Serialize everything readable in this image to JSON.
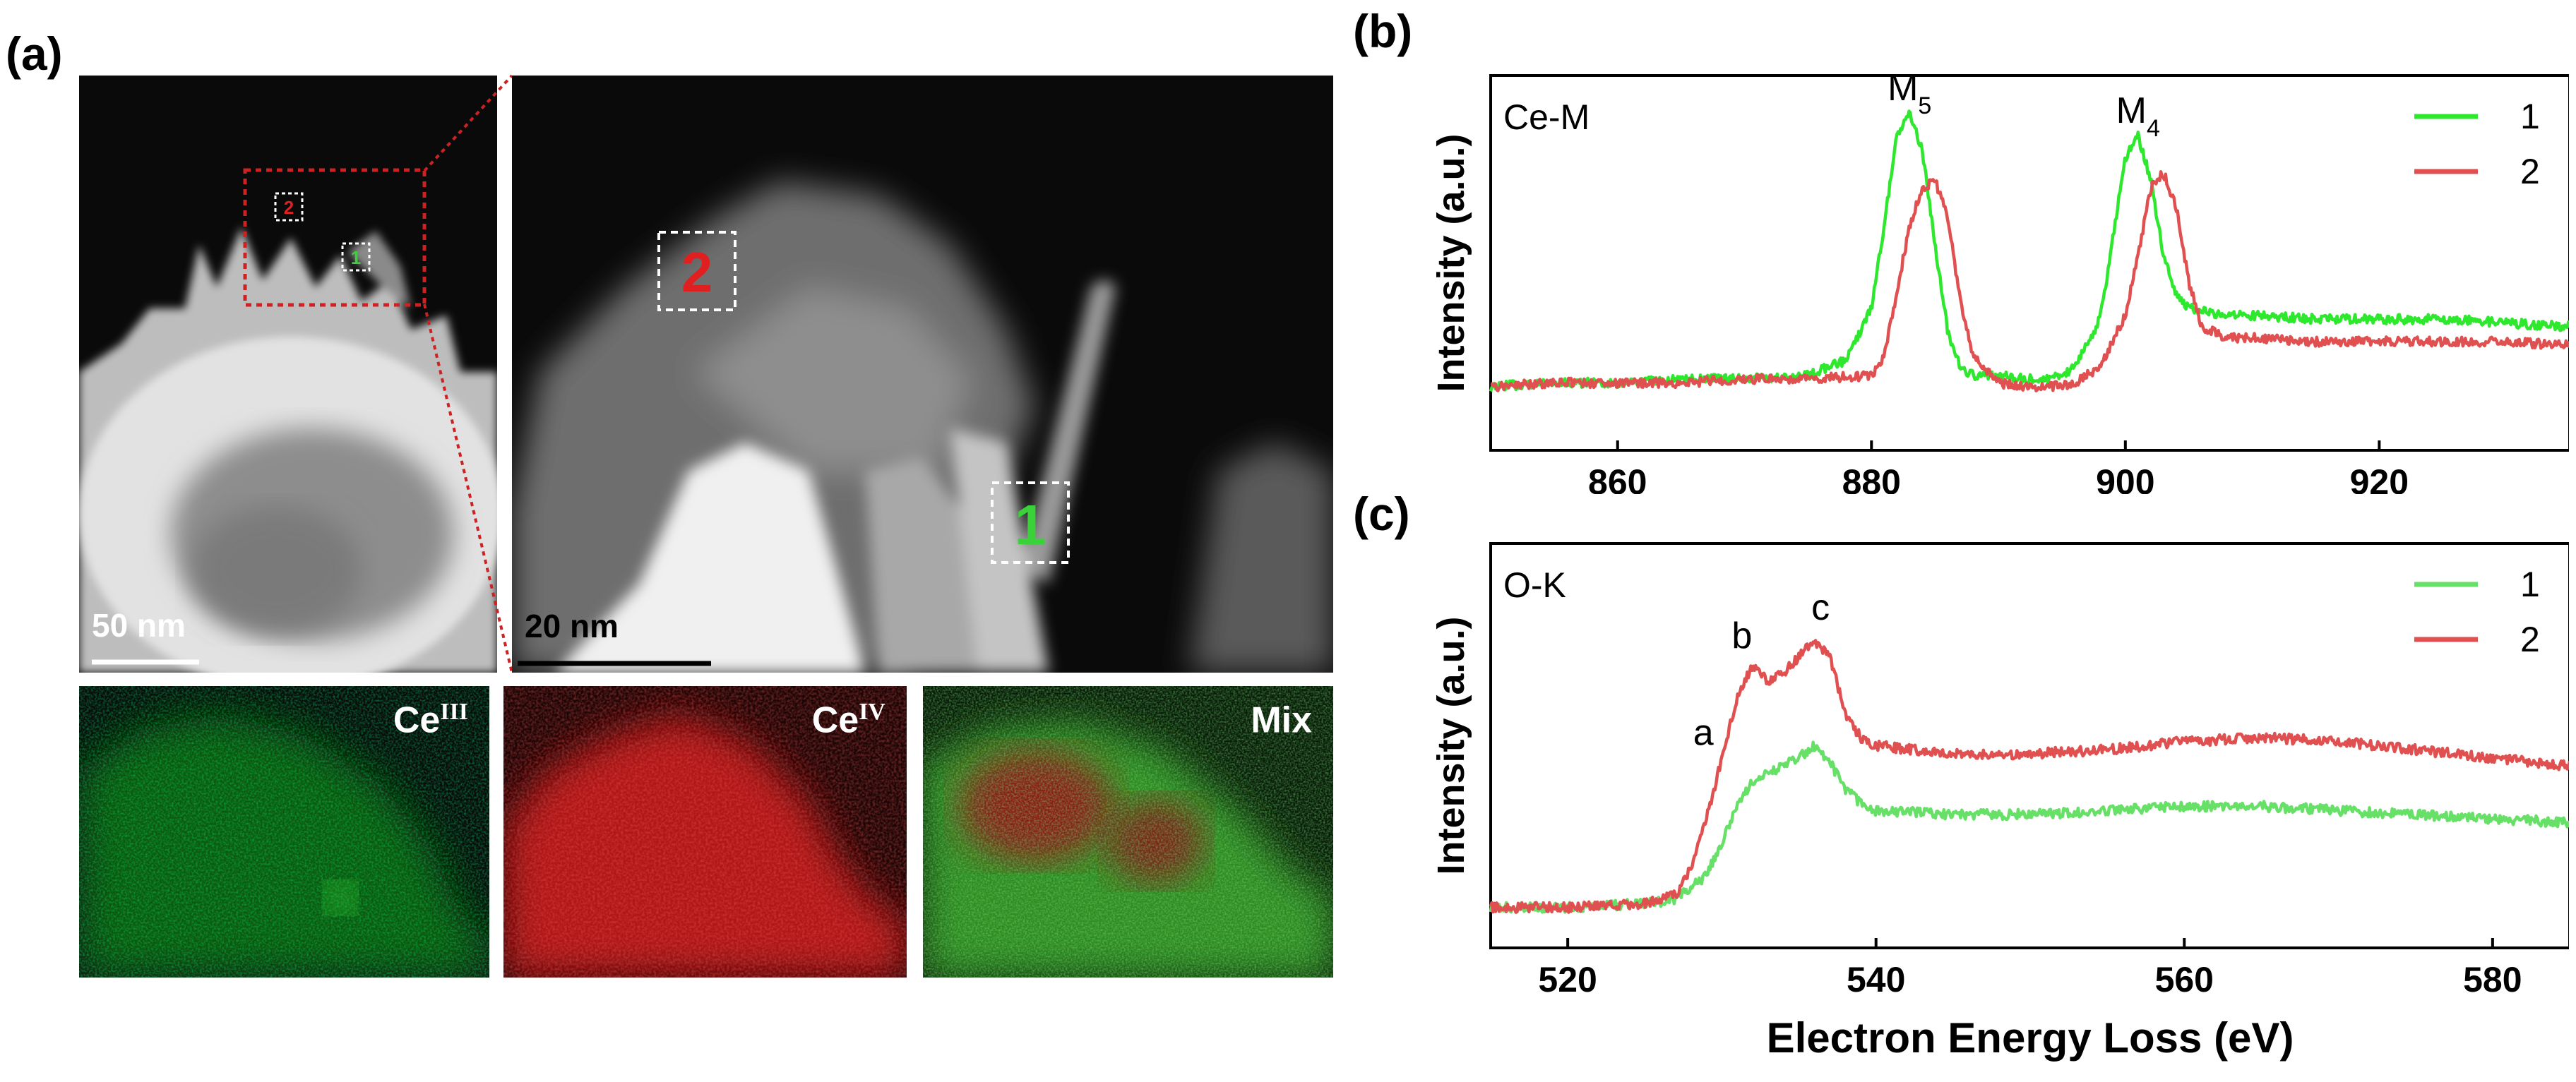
{
  "panel_a": {
    "label": "(a)",
    "overview": {
      "scale_bar": "50 nm"
    },
    "zoom": {
      "scale_bar": "20 nm",
      "region_1": "1",
      "region_2": "2"
    },
    "maps": [
      {
        "base": "Ce",
        "sup": "III",
        "color": "#39d13a"
      },
      {
        "base": "Ce",
        "sup": "IV",
        "color": "#ff2020"
      },
      {
        "base": "Mix",
        "sup": "",
        "color": "#7fbf3f"
      }
    ]
  },
  "chart_data": [
    {
      "panel_label": "(b)",
      "type": "line",
      "annotation": "Ce-M",
      "xlim": [
        850,
        935
      ],
      "ylim": [
        0,
        1
      ],
      "xticks": [
        860,
        880,
        900,
        920
      ],
      "ylabel": "Intensity (a.u.)",
      "xlabel": "",
      "legend": "top-right",
      "peaks": [
        {
          "base": "M",
          "sub": "5",
          "x": 883,
          "y": 0.9
        },
        {
          "base": "M",
          "sub": "4",
          "x": 901,
          "y": 0.84
        }
      ],
      "series": [
        {
          "name": "1",
          "color": "#2ee82e",
          "x": [
            850,
            855,
            860,
            865,
            870,
            875,
            878,
            880,
            881,
            882,
            883,
            884,
            885,
            886,
            887,
            888,
            890,
            892,
            894,
            896,
            898,
            899,
            900,
            901,
            902,
            903,
            904,
            905,
            906,
            908,
            910,
            915,
            920,
            925,
            930,
            935
          ],
          "y": [
            0.17,
            0.18,
            0.18,
            0.19,
            0.19,
            0.2,
            0.24,
            0.38,
            0.6,
            0.84,
            0.9,
            0.8,
            0.55,
            0.32,
            0.22,
            0.2,
            0.2,
            0.19,
            0.19,
            0.22,
            0.35,
            0.56,
            0.78,
            0.84,
            0.72,
            0.52,
            0.42,
            0.38,
            0.37,
            0.36,
            0.36,
            0.35,
            0.35,
            0.35,
            0.34,
            0.33
          ]
        },
        {
          "name": "2",
          "color": "#e05050",
          "x": [
            850,
            855,
            860,
            865,
            870,
            875,
            880,
            881,
            882,
            883,
            884,
            885,
            886,
            887,
            888,
            890,
            892,
            894,
            896,
            898,
            900,
            901,
            902,
            903,
            904,
            905,
            906,
            908,
            910,
            915,
            920,
            925,
            930,
            935
          ],
          "y": [
            0.17,
            0.18,
            0.18,
            0.18,
            0.19,
            0.19,
            0.2,
            0.25,
            0.42,
            0.6,
            0.7,
            0.72,
            0.62,
            0.4,
            0.25,
            0.18,
            0.17,
            0.17,
            0.18,
            0.22,
            0.36,
            0.52,
            0.7,
            0.74,
            0.65,
            0.45,
            0.33,
            0.3,
            0.3,
            0.29,
            0.29,
            0.29,
            0.29,
            0.28
          ]
        }
      ]
    },
    {
      "panel_label": "(c)",
      "type": "line",
      "annotation": "O-K",
      "xlim": [
        515,
        585
      ],
      "ylim": [
        0,
        1
      ],
      "xticks": [
        520,
        540,
        560,
        580
      ],
      "ylabel": "Intensity (a.u.)",
      "xlabel": "Electron Energy Loss (eV)",
      "legend": "top-right",
      "peaks": [
        {
          "base": "a",
          "sub": "",
          "x": 528.8,
          "y": 0.47
        },
        {
          "base": "b",
          "sub": "",
          "x": 531.3,
          "y": 0.71
        },
        {
          "base": "c",
          "sub": "",
          "x": 536.4,
          "y": 0.78
        }
      ],
      "series": [
        {
          "name": "1",
          "color": "#66e066",
          "x": [
            515,
            520,
            525,
            527,
            529,
            530,
            531,
            532,
            533,
            534,
            535,
            536,
            537,
            538,
            539,
            540,
            545,
            550,
            555,
            560,
            565,
            570,
            575,
            580,
            585
          ],
          "y": [
            0.1,
            0.1,
            0.11,
            0.12,
            0.18,
            0.26,
            0.35,
            0.41,
            0.43,
            0.45,
            0.47,
            0.5,
            0.46,
            0.39,
            0.36,
            0.34,
            0.33,
            0.33,
            0.34,
            0.35,
            0.35,
            0.34,
            0.33,
            0.32,
            0.31
          ]
        },
        {
          "name": "2",
          "color": "#e05050",
          "x": [
            515,
            520,
            525,
            527,
            528,
            529,
            530,
            531,
            532,
            533,
            534,
            535,
            536,
            537,
            538,
            539,
            540,
            545,
            550,
            555,
            560,
            565,
            570,
            575,
            580,
            585
          ],
          "y": [
            0.1,
            0.1,
            0.11,
            0.13,
            0.2,
            0.32,
            0.47,
            0.62,
            0.7,
            0.66,
            0.68,
            0.72,
            0.76,
            0.72,
            0.58,
            0.52,
            0.5,
            0.48,
            0.48,
            0.49,
            0.51,
            0.52,
            0.51,
            0.49,
            0.47,
            0.45
          ]
        }
      ]
    }
  ]
}
